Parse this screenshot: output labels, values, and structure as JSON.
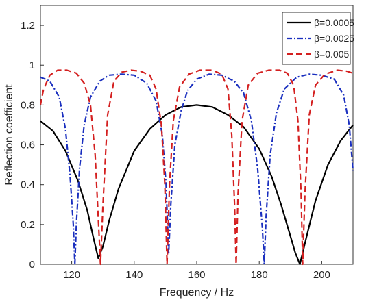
{
  "chart_data": {
    "type": "line",
    "title": "",
    "xlabel": "Frequency / Hz",
    "ylabel": "Reflection coefficient",
    "xlim": [
      110,
      210
    ],
    "ylim": [
      0,
      1.3
    ],
    "xticks": [
      120,
      140,
      160,
      180,
      200
    ],
    "yticks": [
      0,
      0.2,
      0.4,
      0.6,
      0.8,
      1,
      1.2
    ],
    "xtick_labels": [
      "120",
      "140",
      "160",
      "180",
      "200"
    ],
    "ytick_labels": [
      "0",
      "0.2",
      "0.4",
      "0.6",
      "0.8",
      "1",
      "1.2"
    ],
    "grid": false,
    "legend_position": "top-right",
    "series": [
      {
        "name": "β=0.0005",
        "color": "#000000",
        "style": "solid",
        "x": [
          110,
          114,
          118,
          122,
          125,
          127,
          128.5,
          130,
          132,
          135,
          140,
          145,
          150,
          155,
          160,
          165,
          170,
          175,
          180,
          184,
          187,
          190,
          191.5,
          193,
          195,
          198,
          202,
          206,
          210
        ],
        "y": [
          0.72,
          0.67,
          0.57,
          0.42,
          0.27,
          0.13,
          0.03,
          0.09,
          0.22,
          0.38,
          0.57,
          0.68,
          0.75,
          0.79,
          0.8,
          0.79,
          0.75,
          0.69,
          0.58,
          0.44,
          0.3,
          0.14,
          0.06,
          0.0,
          0.13,
          0.32,
          0.5,
          0.62,
          0.7
        ]
      },
      {
        "name": "β=0.0025",
        "color": "#1a2fbf",
        "style": "dashdot",
        "x": [
          110,
          113,
          116,
          118,
          119.5,
          120.5,
          121,
          121.5,
          122.5,
          124,
          126,
          129,
          132,
          136,
          140,
          144,
          147,
          149,
          150.2,
          151,
          151.7,
          153,
          155,
          157,
          160,
          164,
          168,
          172,
          175,
          177.5,
          179.5,
          181,
          181.6,
          182.2,
          183.5,
          185.5,
          188,
          192,
          196,
          200,
          204,
          207,
          208.8,
          210
        ],
        "y": [
          0.94,
          0.92,
          0.84,
          0.68,
          0.44,
          0.2,
          0.0,
          0.2,
          0.48,
          0.7,
          0.84,
          0.92,
          0.95,
          0.955,
          0.95,
          0.91,
          0.82,
          0.65,
          0.4,
          0.05,
          0.3,
          0.6,
          0.77,
          0.87,
          0.93,
          0.955,
          0.95,
          0.92,
          0.86,
          0.72,
          0.48,
          0.18,
          0.0,
          0.24,
          0.55,
          0.76,
          0.88,
          0.94,
          0.955,
          0.95,
          0.93,
          0.85,
          0.7,
          0.47
        ]
      },
      {
        "name": "β=0.005",
        "color": "#d42020",
        "style": "dashed",
        "x": [
          110,
          111,
          113,
          115.5,
          118.5,
          121.5,
          124,
          126,
          127.5,
          128.6,
          129.2,
          130,
          131.5,
          133.5,
          136,
          139,
          142,
          145,
          147,
          148.7,
          149.8,
          150.5,
          151.3,
          152.5,
          154.5,
          157.5,
          161,
          165,
          168,
          170,
          171.2,
          172.1,
          172.6,
          173.2,
          174.5,
          176.5,
          179.5,
          183,
          186.5,
          189,
          191,
          192.4,
          193.4,
          193.9,
          194.6,
          196,
          198,
          201,
          205,
          208,
          210
        ],
        "y": [
          0.8,
          0.88,
          0.95,
          0.975,
          0.975,
          0.96,
          0.91,
          0.8,
          0.55,
          0.2,
          0.0,
          0.3,
          0.75,
          0.92,
          0.965,
          0.975,
          0.97,
          0.95,
          0.88,
          0.7,
          0.4,
          0.0,
          0.4,
          0.72,
          0.89,
          0.955,
          0.975,
          0.975,
          0.955,
          0.88,
          0.65,
          0.3,
          0.0,
          0.35,
          0.72,
          0.9,
          0.96,
          0.975,
          0.975,
          0.96,
          0.9,
          0.72,
          0.35,
          0.0,
          0.35,
          0.75,
          0.9,
          0.955,
          0.975,
          0.97,
          0.96
        ]
      }
    ]
  }
}
